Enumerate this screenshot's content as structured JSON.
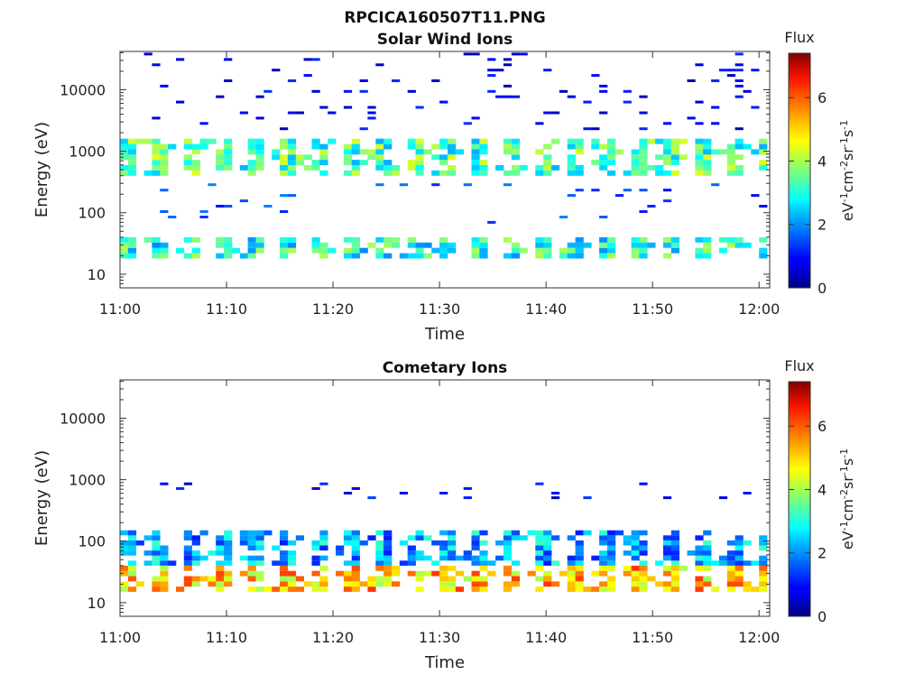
{
  "figure_title": "RPCICA160507T11.PNG",
  "chart_data": [
    {
      "type": "heatmap",
      "title": "Solar Wind Ions",
      "xlabel": "Time",
      "ylabel": "Energy (eV)",
      "x_ticks": [
        "11:00",
        "11:10",
        "11:20",
        "11:30",
        "11:40",
        "11:50",
        "12:00"
      ],
      "y_ticks": [
        "10",
        "100",
        "1000",
        "10000"
      ],
      "y_scale": "log",
      "ylim": [
        6,
        42000
      ],
      "xlim_minutes": [
        0,
        61
      ],
      "colorbar": {
        "title": "Flux",
        "label": "eV-1 cm-2 sr-1 s-1",
        "ticks": [
          "0",
          "2",
          "4",
          "6"
        ],
        "range": [
          0,
          7.4
        ],
        "colormap": "jet"
      },
      "bands": [
        {
          "name": "high-energy sparse",
          "e_min": 2000,
          "e_max": 40000,
          "level": 0.8
        },
        {
          "name": "main peak",
          "e_min": 400,
          "e_max": 1600,
          "level": 3.3
        },
        {
          "name": "mid sparse",
          "e_min": 60,
          "e_max": 300,
          "level": 1.4
        },
        {
          "name": "low-energy band",
          "e_min": 18,
          "e_max": 40,
          "level": 3.0
        }
      ]
    },
    {
      "type": "heatmap",
      "title": "Cometary Ions",
      "xlabel": "Time",
      "ylabel": "Energy (eV)",
      "x_ticks": [
        "11:00",
        "11:10",
        "11:20",
        "11:30",
        "11:40",
        "11:50",
        "12:00"
      ],
      "y_ticks": [
        "10",
        "100",
        "1000",
        "10000"
      ],
      "y_scale": "log",
      "ylim": [
        6,
        42000
      ],
      "xlim_minutes": [
        0,
        61
      ],
      "colorbar": {
        "title": "Flux",
        "label": "eV-1 cm-2 sr-1 s-1",
        "ticks": [
          "0",
          "2",
          "4",
          "6"
        ],
        "range": [
          0,
          7.4
        ],
        "colormap": "jet"
      },
      "bands": [
        {
          "name": "upper band",
          "e_min": 450,
          "e_max": 900,
          "level": 0.9
        },
        {
          "name": "mid band",
          "e_min": 40,
          "e_max": 150,
          "level": 2.2
        },
        {
          "name": "low-energy core",
          "e_min": 15,
          "e_max": 40,
          "level": 5.0
        }
      ]
    }
  ]
}
